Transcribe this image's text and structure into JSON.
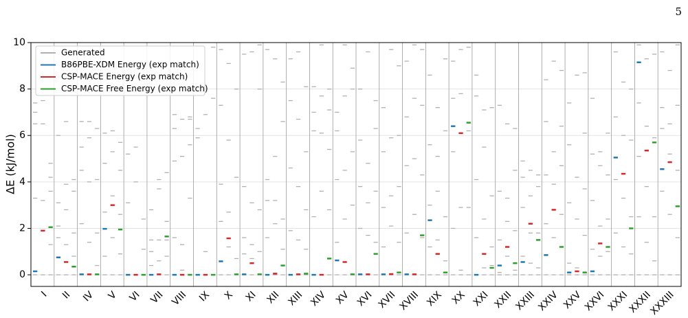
{
  "page_number": "5",
  "chart_data": {
    "type": "level",
    "ylabel": "ΔE (kJ/mol)",
    "ylim": [
      -0.5,
      10
    ],
    "yticks": [
      0,
      2,
      4,
      6,
      8,
      10
    ],
    "grid": true,
    "legend": "upper left",
    "categories": [
      "I",
      "II",
      "IV",
      "V",
      "VI",
      "VII",
      "VIII",
      "IX",
      "X",
      "XI",
      "XII",
      "XIII",
      "XIV",
      "XV",
      "XVI",
      "XVII",
      "XVIII",
      "XIX",
      "XX",
      "XXI",
      "XXII",
      "XXIII",
      "XXIV",
      "XXV",
      "XXVI",
      "XXXI",
      "XXXII",
      "XXXIII"
    ],
    "series": [
      {
        "name": "Generated",
        "color": "#b0b0b0",
        "values": [
          [
            [
              0,
              3.3,
              6.5,
              7.0,
              7.4
            ],
            [
              0,
              1.9,
              3.2,
              6.5,
              7.5
            ],
            [
              0,
              1.3,
              3.6,
              4.2,
              4.8
            ]
          ],
          [
            [
              0,
              1.6,
              2.1,
              3.1,
              6.0
            ],
            [
              0,
              1.3,
              2.8,
              3.9,
              6.6
            ],
            [
              0,
              0.8,
              1.8,
              3.6,
              4.1
            ]
          ],
          [
            [
              0,
              2.2,
              4.5,
              5.5,
              6.6
            ],
            [
              0,
              1.4,
              4.0,
              5.9,
              6.6
            ],
            [
              0,
              0.4,
              1.8,
              4.1,
              6.3
            ]
          ],
          [
            [
              0,
              0.8,
              2.7,
              4.8,
              6.1
            ],
            [
              0,
              1.6,
              3.4,
              5.3,
              6.2
            ],
            [
              0,
              0.9,
              2.6,
              4.5,
              5.7
            ]
          ],
          [
            [
              0,
              3.1,
              5.2
            ],
            [
              0,
              4.0,
              5.5
            ],
            [
              0,
              1.1,
              2.4
            ]
          ],
          [
            [
              0,
              0.4,
              1.0,
              1.5,
              2.8
            ],
            [
              0,
              0.6,
              1.5,
              3.7,
              4.1
            ],
            [
              0,
              0.8,
              1.5,
              2.3,
              4.4
            ]
          ],
          [
            [
              0,
              1.6,
              4.9,
              6.3,
              6.9
            ],
            [
              0,
              0.2,
              1.3,
              5.1,
              6.7
            ],
            [
              0,
              3.3,
              5.6,
              6.7,
              6.8
            ]
          ],
          [
            [
              0,
              5.9,
              6.3
            ],
            [
              0,
              1.0,
              6.9
            ],
            [
              0,
              7.6,
              9.8
            ]
          ],
          [
            [
              0,
              2.3,
              3.9,
              7.3,
              9.7
            ],
            [
              0,
              1.2,
              2.7,
              5.8,
              9.1
            ],
            [
              0,
              0.7,
              4.2,
              8.0
            ]
          ],
          [
            [
              0,
              0.9,
              1.6,
              3.8,
              9.5
            ],
            [
              0,
              0.7,
              1.3,
              3.1,
              9.6
            ],
            [
              0,
              1.0,
              2.8,
              8.0,
              9.9
            ]
          ],
          [
            [
              0,
              1.6,
              3.2,
              4.1,
              9.7
            ],
            [
              0,
              2.2,
              3.2,
              5.1,
              9.3
            ],
            [
              0,
              1.1,
              2.4,
              6.6,
              8.3
            ]
          ],
          [
            [
              0,
              1.9,
              4.6,
              7.5,
              9.3
            ],
            [
              0,
              1.5,
              3.8,
              6.7,
              9.6
            ],
            [
              0,
              1.1,
              2.8,
              5.3,
              8.1
            ]
          ],
          [
            [
              0,
              2.5,
              6.2,
              7.0,
              8.1
            ],
            [
              0,
              3.6,
              6.1,
              7.7,
              9.9
            ],
            [
              0,
              2.8,
              5.4,
              7.1,
              8.0
            ]
          ],
          [
            [
              0,
              1.4,
              4.1,
              6.2,
              7.0
            ],
            [
              0,
              2.4,
              4.5,
              7.7,
              9.9
            ],
            [
              0,
              3.0,
              5.3,
              8.0,
              8.9
            ]
          ],
          [
            [
              0,
              2.0,
              3.8,
              5.8,
              8.0
            ],
            [
              0,
              1.7,
              3.1,
              4.8,
              9.6
            ],
            [
              0,
              1.4,
              3.6,
              6.3,
              7.5
            ]
          ],
          [
            [
              0,
              1.2,
              2.9,
              5.3,
              7.2
            ],
            [
              0,
              2.1,
              3.4,
              5.9,
              9.7
            ],
            [
              0,
              1.4,
              3.8,
              6.0,
              9.0
            ]
          ],
          [
            [
              0,
              1.8,
              4.7,
              6.8,
              9.2
            ],
            [
              0,
              2.6,
              5.0,
              7.6,
              9.9
            ],
            [
              0,
              1.6,
              4.3,
              7.3,
              9.7
            ]
          ],
          [
            [
              0,
              1.2,
              3.0,
              5.6,
              8.6
            ],
            [
              0,
              1.5,
              3.6,
              5.1,
              7.2
            ],
            [
              0,
              0.6,
              2.5,
              6.2,
              9.3
            ]
          ],
          [
            [
              0,
              2.0,
              5.3,
              7.6,
              9.2
            ],
            [
              0,
              0.2,
              2.9,
              7.8,
              9.7
            ],
            [
              0,
              2.9,
              6.2,
              9.8
            ]
          ],
          [
            [
              0,
              1.6,
              4.1,
              7.7,
              8.6
            ],
            [
              0,
              0.3,
              2.4,
              5.5,
              7.1
            ],
            [
              0,
              0.4,
              1.2,
              3.4,
              7.2
            ]
          ],
          [
            [
              0,
              0.1,
              1.5,
              3.6,
              7.3
            ],
            [
              0,
              0.8,
              2.3,
              3.3,
              6.5
            ],
            [
              0,
              0.2,
              1.9,
              4.5,
              6.3
            ]
          ],
          [
            [
              0,
              0.8,
              2.9,
              4.2,
              4.9
            ],
            [
              0,
              0.5,
              1.8,
              3.4,
              4.5
            ],
            [
              0,
              0.3,
              1.8,
              3.8,
              4.3
            ]
          ],
          [
            [
              0,
              2.2,
              4.3,
              6.6,
              8.4
            ],
            [
              0,
              1.6,
              3.9,
              5.3,
              9.2
            ],
            [
              0,
              2.6,
              4.7,
              6.4,
              8.8
            ]
          ],
          [
            [
              0,
              0.5,
              3.1,
              5.6,
              7.4
            ],
            [
              0,
              0.3,
              2.4,
              4.2,
              8.6
            ],
            [
              0,
              1.7,
              3.7,
              6.1,
              8.7
            ]
          ],
          [
            [
              0,
              1.1,
              3.2,
              5.2,
              7.6
            ],
            [
              0,
              0.8,
              2.1,
              4.7,
              5.3
            ],
            [
              0,
              1.0,
              2.4,
              4.3,
              6.1
            ]
          ],
          [
            [
              0,
              1.8,
              4.1,
              6.8,
              9.6
            ],
            [
              0,
              1.2,
              3.3,
              6.0,
              8.3
            ],
            [
              0,
              0.9,
              2.5,
              5.8,
              8.0
            ]
          ],
          [
            [
              0,
              2.5,
              5.1,
              7.4,
              9.9
            ],
            [
              0,
              1.4,
              3.8,
              6.4,
              9.3
            ],
            [
              0,
              0.6,
              2.5,
              5.9,
              9.5
            ]
          ],
          [
            [
              0,
              3.6,
              6.3,
              7.2,
              9.6
            ],
            [
              0,
              2.6,
              5.2,
              6.5,
              8.8
            ],
            [
              0,
              1.6,
              4.5,
              7.3,
              9.9
            ]
          ]
        ]
      },
      {
        "name": "B86PBE-XDM Energy (exp match)",
        "color": "#1f77b4",
        "values": [
          0.15,
          0.75,
          0.02,
          1.98,
          0,
          0,
          0,
          0,
          0.58,
          0.02,
          0,
          0,
          0,
          0.62,
          0.02,
          0.02,
          0.02,
          2.35,
          6.4,
          0,
          0.4,
          0.55,
          0.85,
          0.1,
          0.15,
          5.05,
          9.15,
          4.55
        ]
      },
      {
        "name": "CSP-MACE Energy (exp match)",
        "color": "#d62728",
        "values": [
          1.9,
          0.55,
          0.02,
          3.0,
          0,
          0.02,
          0,
          0,
          1.57,
          0.5,
          0.05,
          0.02,
          0,
          0.55,
          0.02,
          0.03,
          0.02,
          0.9,
          6.1,
          0.9,
          1.2,
          2.2,
          2.8,
          0.15,
          1.35,
          4.35,
          5.35,
          4.85
        ]
      },
      {
        "name": "CSP-MACE Free Energy (exp match)",
        "color": "#2ca02c",
        "values": [
          2.05,
          0.35,
          0.02,
          1.95,
          0,
          1.65,
          0,
          0,
          0.02,
          0.02,
          0.4,
          0.05,
          0.7,
          0.02,
          0.9,
          0.1,
          1.7,
          0.1,
          6.55,
          0.3,
          0.5,
          1.5,
          1.2,
          0.1,
          1.2,
          2.0,
          5.7,
          2.95
        ]
      }
    ]
  }
}
